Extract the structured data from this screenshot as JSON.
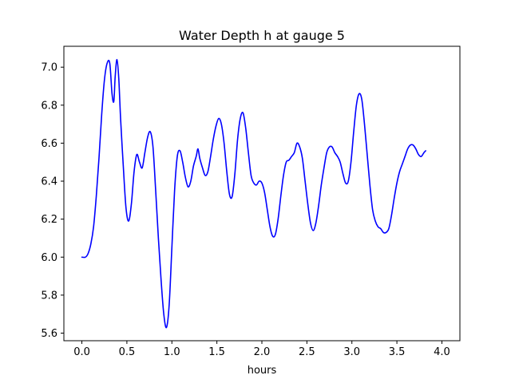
{
  "chart_data": {
    "type": "line",
    "title": "Water Depth h at gauge 5",
    "xlabel": "hours",
    "ylabel": "",
    "xlim": [
      -0.2,
      4.2
    ],
    "ylim": [
      5.56,
      7.11
    ],
    "x_ticks": [
      0.0,
      0.5,
      1.0,
      1.5,
      2.0,
      2.5,
      3.0,
      3.5,
      4.0
    ],
    "x_tick_labels": [
      "0.0",
      "0.5",
      "1.0",
      "1.5",
      "2.0",
      "2.5",
      "3.0",
      "3.5",
      "4.0"
    ],
    "y_ticks": [
      5.6,
      5.8,
      6.0,
      6.2,
      6.4,
      6.6,
      6.8,
      7.0
    ],
    "y_tick_labels": [
      "5.6",
      "5.8",
      "6.0",
      "6.2",
      "6.4",
      "6.6",
      "6.8",
      "7.0"
    ],
    "grid": false,
    "series": [
      {
        "color": "#0000ff",
        "points": [
          [
            0.0,
            6.0
          ],
          [
            0.04,
            6.0
          ],
          [
            0.07,
            6.02
          ],
          [
            0.1,
            6.07
          ],
          [
            0.13,
            6.16
          ],
          [
            0.16,
            6.32
          ],
          [
            0.19,
            6.52
          ],
          [
            0.22,
            6.75
          ],
          [
            0.25,
            6.93
          ],
          [
            0.28,
            7.02
          ],
          [
            0.31,
            7.02
          ],
          [
            0.335,
            6.86
          ],
          [
            0.355,
            6.82
          ],
          [
            0.37,
            6.95
          ],
          [
            0.39,
            7.04
          ],
          [
            0.41,
            6.94
          ],
          [
            0.43,
            6.73
          ],
          [
            0.46,
            6.48
          ],
          [
            0.49,
            6.26
          ],
          [
            0.52,
            6.19
          ],
          [
            0.55,
            6.28
          ],
          [
            0.58,
            6.45
          ],
          [
            0.61,
            6.54
          ],
          [
            0.64,
            6.5
          ],
          [
            0.67,
            6.47
          ],
          [
            0.7,
            6.55
          ],
          [
            0.73,
            6.63
          ],
          [
            0.76,
            6.66
          ],
          [
            0.79,
            6.58
          ],
          [
            0.82,
            6.35
          ],
          [
            0.85,
            6.1
          ],
          [
            0.88,
            5.88
          ],
          [
            0.91,
            5.7
          ],
          [
            0.94,
            5.63
          ],
          [
            0.97,
            5.75
          ],
          [
            1.0,
            6.05
          ],
          [
            1.03,
            6.35
          ],
          [
            1.06,
            6.53
          ],
          [
            1.09,
            6.56
          ],
          [
            1.12,
            6.5
          ],
          [
            1.15,
            6.42
          ],
          [
            1.18,
            6.37
          ],
          [
            1.21,
            6.4
          ],
          [
            1.24,
            6.48
          ],
          [
            1.27,
            6.53
          ],
          [
            1.29,
            6.57
          ],
          [
            1.31,
            6.52
          ],
          [
            1.34,
            6.47
          ],
          [
            1.37,
            6.43
          ],
          [
            1.4,
            6.45
          ],
          [
            1.43,
            6.53
          ],
          [
            1.46,
            6.62
          ],
          [
            1.49,
            6.69
          ],
          [
            1.52,
            6.73
          ],
          [
            1.55,
            6.7
          ],
          [
            1.58,
            6.6
          ],
          [
            1.61,
            6.45
          ],
          [
            1.64,
            6.33
          ],
          [
            1.67,
            6.32
          ],
          [
            1.7,
            6.44
          ],
          [
            1.73,
            6.62
          ],
          [
            1.76,
            6.73
          ],
          [
            1.79,
            6.76
          ],
          [
            1.82,
            6.68
          ],
          [
            1.85,
            6.55
          ],
          [
            1.88,
            6.43
          ],
          [
            1.91,
            6.39
          ],
          [
            1.94,
            6.38
          ],
          [
            1.97,
            6.4
          ],
          [
            2.0,
            6.39
          ],
          [
            2.03,
            6.34
          ],
          [
            2.06,
            6.25
          ],
          [
            2.09,
            6.16
          ],
          [
            2.12,
            6.11
          ],
          [
            2.15,
            6.12
          ],
          [
            2.18,
            6.2
          ],
          [
            2.21,
            6.32
          ],
          [
            2.24,
            6.43
          ],
          [
            2.27,
            6.5
          ],
          [
            2.3,
            6.51
          ],
          [
            2.33,
            6.53
          ],
          [
            2.36,
            6.55
          ],
          [
            2.39,
            6.6
          ],
          [
            2.42,
            6.58
          ],
          [
            2.45,
            6.52
          ],
          [
            2.48,
            6.4
          ],
          [
            2.51,
            6.28
          ],
          [
            2.54,
            6.18
          ],
          [
            2.57,
            6.14
          ],
          [
            2.6,
            6.18
          ],
          [
            2.63,
            6.27
          ],
          [
            2.66,
            6.38
          ],
          [
            2.69,
            6.47
          ],
          [
            2.72,
            6.55
          ],
          [
            2.75,
            6.58
          ],
          [
            2.78,
            6.58
          ],
          [
            2.81,
            6.55
          ],
          [
            2.84,
            6.53
          ],
          [
            2.87,
            6.5
          ],
          [
            2.9,
            6.44
          ],
          [
            2.93,
            6.39
          ],
          [
            2.96,
            6.4
          ],
          [
            2.99,
            6.5
          ],
          [
            3.02,
            6.66
          ],
          [
            3.05,
            6.8
          ],
          [
            3.08,
            6.86
          ],
          [
            3.11,
            6.83
          ],
          [
            3.14,
            6.7
          ],
          [
            3.17,
            6.54
          ],
          [
            3.2,
            6.38
          ],
          [
            3.23,
            6.25
          ],
          [
            3.26,
            6.19
          ],
          [
            3.29,
            6.16
          ],
          [
            3.32,
            6.15
          ],
          [
            3.35,
            6.13
          ],
          [
            3.38,
            6.13
          ],
          [
            3.41,
            6.15
          ],
          [
            3.44,
            6.22
          ],
          [
            3.47,
            6.31
          ],
          [
            3.5,
            6.39
          ],
          [
            3.53,
            6.45
          ],
          [
            3.56,
            6.49
          ],
          [
            3.59,
            6.53
          ],
          [
            3.62,
            6.57
          ],
          [
            3.65,
            6.59
          ],
          [
            3.68,
            6.59
          ],
          [
            3.71,
            6.57
          ],
          [
            3.74,
            6.54
          ],
          [
            3.77,
            6.53
          ],
          [
            3.8,
            6.55
          ],
          [
            3.82,
            6.56
          ]
        ]
      }
    ]
  }
}
